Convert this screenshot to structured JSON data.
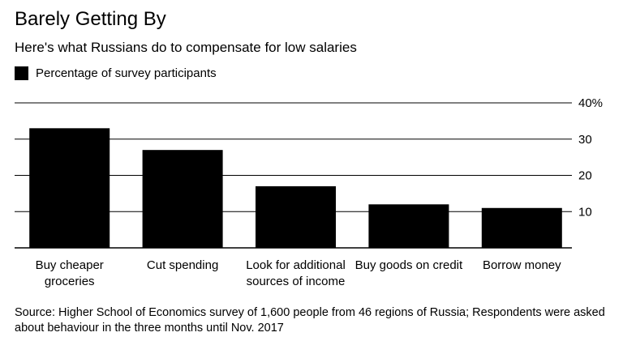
{
  "title": "Barely Getting By",
  "subtitle": "Here's what Russians do to compensate for low salaries",
  "legend": {
    "label": "Percentage of survey participants",
    "color": "#000000"
  },
  "source": "Source: Higher School of Economics survey of 1,600 people from 46 regions of Russia; Respondents were asked about behaviour in the three months until Nov. 2017",
  "chart_data": {
    "type": "bar",
    "title": "Barely Getting By",
    "subtitle": "Here's what Russians do to compensate for low salaries",
    "categories": [
      [
        "Buy cheaper",
        "groceries"
      ],
      [
        "Cut spending"
      ],
      [
        "Look for additional",
        "sources of income"
      ],
      [
        "Buy goods on credit"
      ],
      [
        "Borrow money"
      ]
    ],
    "series": [
      {
        "name": "Percentage of survey participants",
        "values": [
          33,
          27,
          17,
          12,
          11
        ],
        "color": "#000000"
      }
    ],
    "ylim": [
      0,
      40
    ],
    "yticks": [
      10,
      20,
      30,
      40
    ],
    "ytick_labels": [
      "10",
      "20",
      "30",
      "40%"
    ],
    "y_axis_side": "right",
    "grid": true,
    "legend_position": "top-left"
  }
}
